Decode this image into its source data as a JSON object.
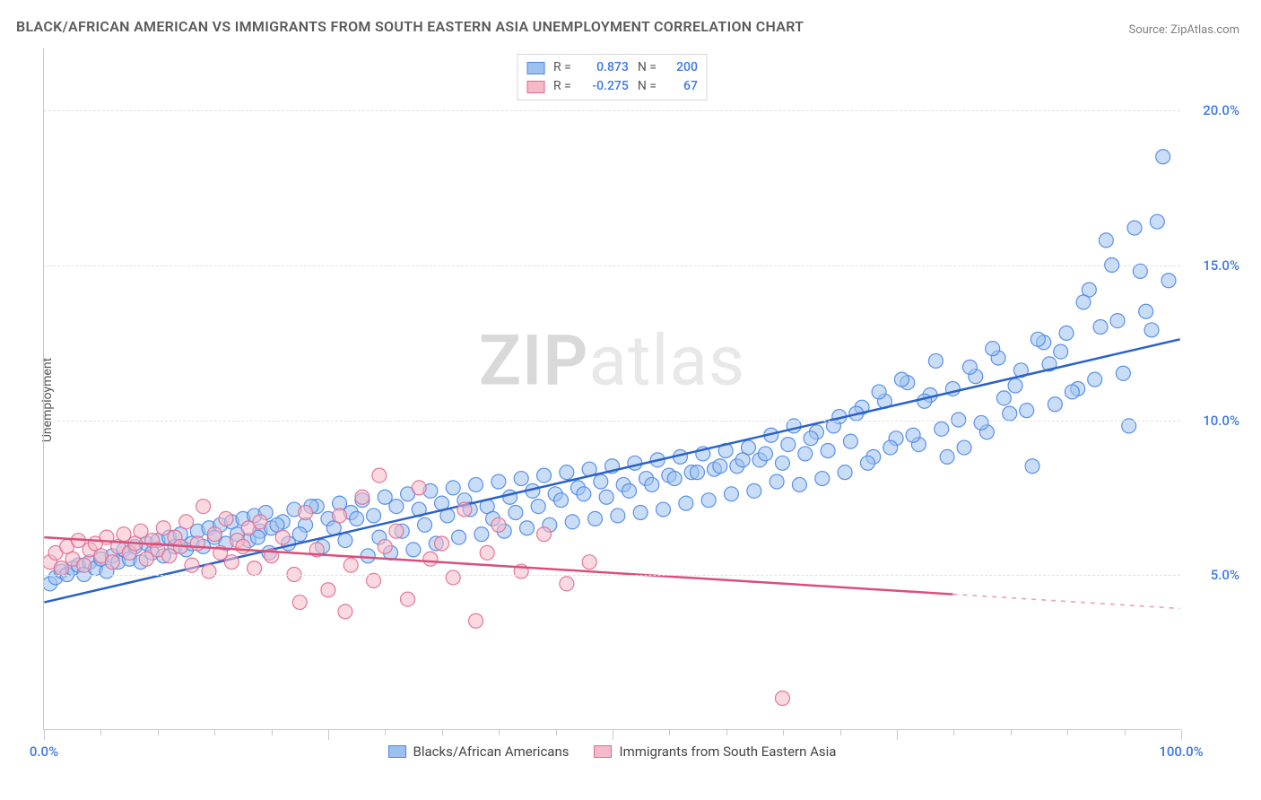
{
  "title": "BLACK/AFRICAN AMERICAN VS IMMIGRANTS FROM SOUTH EASTERN ASIA UNEMPLOYMENT CORRELATION CHART",
  "source": "Source: ZipAtlas.com",
  "ylabel": "Unemployment",
  "watermark": {
    "brand": "ZIP",
    "suffix": "atlas"
  },
  "chart": {
    "type": "scatter",
    "background_color": "#ffffff",
    "grid_color": "#e0e0e0",
    "axis_color": "#c9c9c9",
    "xlim": [
      0,
      100
    ],
    "ylim": [
      0,
      22
    ],
    "x_ticks_major": [
      0,
      25,
      50,
      75,
      100
    ],
    "x_ticks_minor_step": 5,
    "x_tick_labels": [
      {
        "value": 0,
        "label": "0.0%",
        "color": "#3b78e7"
      },
      {
        "value": 100,
        "label": "100.0%",
        "color": "#3b78e7"
      }
    ],
    "y_gridlines": [
      5,
      10,
      15,
      20
    ],
    "y_tick_labels": [
      {
        "value": 5,
        "label": "5.0%",
        "color": "#3b78e7"
      },
      {
        "value": 10,
        "label": "10.0%",
        "color": "#3b78e7"
      },
      {
        "value": 15,
        "label": "15.0%",
        "color": "#3b78e7"
      },
      {
        "value": 20,
        "label": "20.0%",
        "color": "#3b78e7"
      }
    ],
    "marker_radius": 8,
    "marker_opacity": 0.55,
    "marker_stroke_opacity": 0.9,
    "line_width": 2.5,
    "legend_top": {
      "border_color": "#d6d6d6",
      "rows": [
        {
          "swatch_fill": "#9cc1f0",
          "swatch_stroke": "#4a86e8",
          "r_label": "R =",
          "r_value": "0.873",
          "n_label": "N =",
          "n_value": "200"
        },
        {
          "swatch_fill": "#f6b9c8",
          "swatch_stroke": "#e06c8f",
          "r_label": "R =",
          "r_value": "-0.275",
          "n_label": "N =",
          "n_value": "67"
        }
      ]
    },
    "legend_bottom": [
      {
        "swatch_fill": "#9cc1f0",
        "swatch_stroke": "#4a86e8",
        "label": "Blacks/African Americans"
      },
      {
        "swatch_fill": "#f6b9c8",
        "swatch_stroke": "#e06c8f",
        "label": "Immigrants from South Eastern Asia"
      }
    ],
    "series": [
      {
        "key": "blue",
        "fill": "#9cc1f0",
        "stroke": "#4a86e8",
        "trend": {
          "x1": 0,
          "y1": 4.1,
          "x2": 100,
          "y2": 12.6,
          "color": "#2a62c9",
          "dash_from_x": null
        },
        "points": [
          [
            0.5,
            4.7
          ],
          [
            1,
            4.9
          ],
          [
            1.5,
            5.1
          ],
          [
            2,
            5.0
          ],
          [
            2.5,
            5.2
          ],
          [
            3,
            5.3
          ],
          [
            3.5,
            5.0
          ],
          [
            4,
            5.4
          ],
          [
            4.5,
            5.2
          ],
          [
            5,
            5.5
          ],
          [
            5.5,
            5.1
          ],
          [
            6,
            5.6
          ],
          [
            6.5,
            5.4
          ],
          [
            7,
            5.8
          ],
          [
            7.5,
            5.5
          ],
          [
            8,
            5.9
          ],
          [
            8.5,
            5.4
          ],
          [
            9,
            6.0
          ],
          [
            9.5,
            5.7
          ],
          [
            10,
            6.1
          ],
          [
            10.5,
            5.6
          ],
          [
            11,
            6.2
          ],
          [
            11.5,
            5.9
          ],
          [
            12,
            6.3
          ],
          [
            12.5,
            5.8
          ],
          [
            13,
            6.0
          ],
          [
            13.5,
            6.4
          ],
          [
            14,
            5.9
          ],
          [
            14.5,
            6.5
          ],
          [
            15,
            6.2
          ],
          [
            15.5,
            6.6
          ],
          [
            16,
            6.0
          ],
          [
            16.5,
            6.7
          ],
          [
            17,
            6.3
          ],
          [
            17.5,
            6.8
          ],
          [
            18,
            6.1
          ],
          [
            18.5,
            6.9
          ],
          [
            19,
            6.4
          ],
          [
            19.5,
            7.0
          ],
          [
            20,
            6.5
          ],
          [
            21,
            6.7
          ],
          [
            22,
            7.1
          ],
          [
            23,
            6.6
          ],
          [
            24,
            7.2
          ],
          [
            25,
            6.8
          ],
          [
            26,
            7.3
          ],
          [
            27,
            7.0
          ],
          [
            28,
            7.4
          ],
          [
            29,
            6.9
          ],
          [
            30,
            7.5
          ],
          [
            31,
            7.2
          ],
          [
            32,
            7.6
          ],
          [
            33,
            7.1
          ],
          [
            34,
            7.7
          ],
          [
            35,
            7.3
          ],
          [
            36,
            7.8
          ],
          [
            37,
            7.4
          ],
          [
            38,
            7.9
          ],
          [
            39,
            7.2
          ],
          [
            40,
            8.0
          ],
          [
            41,
            7.5
          ],
          [
            42,
            8.1
          ],
          [
            43,
            7.7
          ],
          [
            44,
            8.2
          ],
          [
            45,
            7.6
          ],
          [
            46,
            8.3
          ],
          [
            47,
            7.8
          ],
          [
            48,
            8.4
          ],
          [
            49,
            8.0
          ],
          [
            50,
            8.5
          ],
          [
            51,
            7.9
          ],
          [
            52,
            8.6
          ],
          [
            53,
            8.1
          ],
          [
            54,
            8.7
          ],
          [
            55,
            8.2
          ],
          [
            56,
            8.8
          ],
          [
            57,
            8.3
          ],
          [
            58,
            8.9
          ],
          [
            59,
            8.4
          ],
          [
            60,
            9.0
          ],
          [
            61,
            8.5
          ],
          [
            62,
            9.1
          ],
          [
            63,
            8.7
          ],
          [
            64,
            9.5
          ],
          [
            65,
            8.6
          ],
          [
            66,
            9.8
          ],
          [
            67,
            8.9
          ],
          [
            68,
            9.6
          ],
          [
            69,
            9.0
          ],
          [
            70,
            10.1
          ],
          [
            71,
            9.3
          ],
          [
            72,
            10.4
          ],
          [
            73,
            8.8
          ],
          [
            74,
            10.6
          ],
          [
            75,
            9.4
          ],
          [
            76,
            11.2
          ],
          [
            77,
            9.2
          ],
          [
            78,
            10.8
          ],
          [
            79,
            9.7
          ],
          [
            80,
            11.0
          ],
          [
            81,
            9.1
          ],
          [
            82,
            11.4
          ],
          [
            83,
            9.6
          ],
          [
            84,
            12.0
          ],
          [
            85,
            10.2
          ],
          [
            86,
            11.6
          ],
          [
            87,
            8.5
          ],
          [
            88,
            12.5
          ],
          [
            89,
            10.5
          ],
          [
            90,
            12.8
          ],
          [
            91,
            11.0
          ],
          [
            92,
            14.2
          ],
          [
            93,
            13.0
          ],
          [
            94,
            15.0
          ],
          [
            95,
            11.5
          ],
          [
            96,
            16.2
          ],
          [
            97,
            13.5
          ],
          [
            98,
            16.4
          ],
          [
            98.5,
            18.5
          ],
          [
            99,
            14.5
          ],
          [
            97.5,
            12.9
          ],
          [
            96.5,
            14.8
          ],
          [
            95.5,
            9.8
          ],
          [
            94.5,
            13.2
          ],
          [
            93.5,
            15.8
          ],
          [
            92.5,
            11.3
          ],
          [
            91.5,
            13.8
          ],
          [
            90.5,
            10.9
          ],
          [
            89.5,
            12.2
          ],
          [
            88.5,
            11.8
          ],
          [
            87.5,
            12.6
          ],
          [
            86.5,
            10.3
          ],
          [
            85.5,
            11.1
          ],
          [
            84.5,
            10.7
          ],
          [
            83.5,
            12.3
          ],
          [
            82.5,
            9.9
          ],
          [
            81.5,
            11.7
          ],
          [
            80.5,
            10.0
          ],
          [
            79.5,
            8.8
          ],
          [
            78.5,
            11.9
          ],
          [
            77.5,
            10.6
          ],
          [
            76.5,
            9.5
          ],
          [
            75.5,
            11.3
          ],
          [
            74.5,
            9.1
          ],
          [
            73.5,
            10.9
          ],
          [
            72.5,
            8.6
          ],
          [
            71.5,
            10.2
          ],
          [
            70.5,
            8.3
          ],
          [
            69.5,
            9.8
          ],
          [
            68.5,
            8.1
          ],
          [
            67.5,
            9.4
          ],
          [
            66.5,
            7.9
          ],
          [
            65.5,
            9.2
          ],
          [
            64.5,
            8.0
          ],
          [
            63.5,
            8.9
          ],
          [
            62.5,
            7.7
          ],
          [
            61.5,
            8.7
          ],
          [
            60.5,
            7.6
          ],
          [
            59.5,
            8.5
          ],
          [
            58.5,
            7.4
          ],
          [
            57.5,
            8.3
          ],
          [
            56.5,
            7.3
          ],
          [
            55.5,
            8.1
          ],
          [
            54.5,
            7.1
          ],
          [
            53.5,
            7.9
          ],
          [
            52.5,
            7.0
          ],
          [
            51.5,
            7.7
          ],
          [
            50.5,
            6.9
          ],
          [
            49.5,
            7.5
          ],
          [
            48.5,
            6.8
          ],
          [
            47.5,
            7.6
          ],
          [
            46.5,
            6.7
          ],
          [
            45.5,
            7.4
          ],
          [
            44.5,
            6.6
          ],
          [
            43.5,
            7.2
          ],
          [
            42.5,
            6.5
          ],
          [
            41.5,
            7.0
          ],
          [
            40.5,
            6.4
          ],
          [
            39.5,
            6.8
          ],
          [
            38.5,
            6.3
          ],
          [
            37.5,
            7.1
          ],
          [
            36.5,
            6.2
          ],
          [
            35.5,
            6.9
          ],
          [
            34.5,
            6.0
          ],
          [
            33.5,
            6.6
          ],
          [
            32.5,
            5.8
          ],
          [
            31.5,
            6.4
          ],
          [
            30.5,
            5.7
          ],
          [
            29.5,
            6.2
          ],
          [
            28.5,
            5.6
          ],
          [
            27.5,
            6.8
          ],
          [
            26.5,
            6.1
          ],
          [
            25.5,
            6.5
          ],
          [
            24.5,
            5.9
          ],
          [
            23.5,
            7.2
          ],
          [
            22.5,
            6.3
          ],
          [
            21.5,
            6.0
          ],
          [
            20.5,
            6.6
          ],
          [
            19.8,
            5.7
          ],
          [
            18.8,
            6.2
          ]
        ]
      },
      {
        "key": "pink",
        "fill": "#f6b9c8",
        "stroke": "#e06c8f",
        "trend": {
          "x1": 0,
          "y1": 6.2,
          "x2": 100,
          "y2": 3.9,
          "color": "#d94f7a",
          "dash_from_x": 80
        },
        "points": [
          [
            0.5,
            5.4
          ],
          [
            1,
            5.7
          ],
          [
            1.5,
            5.2
          ],
          [
            2,
            5.9
          ],
          [
            2.5,
            5.5
          ],
          [
            3,
            6.1
          ],
          [
            3.5,
            5.3
          ],
          [
            4,
            5.8
          ],
          [
            4.5,
            6.0
          ],
          [
            5,
            5.6
          ],
          [
            5.5,
            6.2
          ],
          [
            6,
            5.4
          ],
          [
            6.5,
            5.9
          ],
          [
            7,
            6.3
          ],
          [
            7.5,
            5.7
          ],
          [
            8,
            6.0
          ],
          [
            8.5,
            6.4
          ],
          [
            9,
            5.5
          ],
          [
            9.5,
            6.1
          ],
          [
            10,
            5.8
          ],
          [
            10.5,
            6.5
          ],
          [
            11,
            5.6
          ],
          [
            11.5,
            6.2
          ],
          [
            12,
            5.9
          ],
          [
            12.5,
            6.7
          ],
          [
            13,
            5.3
          ],
          [
            13.5,
            6.0
          ],
          [
            14,
            7.2
          ],
          [
            14.5,
            5.1
          ],
          [
            15,
            6.3
          ],
          [
            15.5,
            5.7
          ],
          [
            16,
            6.8
          ],
          [
            16.5,
            5.4
          ],
          [
            17,
            6.1
          ],
          [
            17.5,
            5.9
          ],
          [
            18,
            6.5
          ],
          [
            18.5,
            5.2
          ],
          [
            19,
            6.7
          ],
          [
            20,
            5.6
          ],
          [
            21,
            6.2
          ],
          [
            22,
            5.0
          ],
          [
            22.5,
            4.1
          ],
          [
            23,
            7.0
          ],
          [
            24,
            5.8
          ],
          [
            25,
            4.5
          ],
          [
            26,
            6.9
          ],
          [
            26.5,
            3.8
          ],
          [
            27,
            5.3
          ],
          [
            28,
            7.5
          ],
          [
            29,
            4.8
          ],
          [
            29.5,
            8.2
          ],
          [
            30,
            5.9
          ],
          [
            31,
            6.4
          ],
          [
            32,
            4.2
          ],
          [
            33,
            7.8
          ],
          [
            34,
            5.5
          ],
          [
            35,
            6.0
          ],
          [
            36,
            4.9
          ],
          [
            37,
            7.1
          ],
          [
            38,
            3.5
          ],
          [
            39,
            5.7
          ],
          [
            40,
            6.6
          ],
          [
            42,
            5.1
          ],
          [
            44,
            6.3
          ],
          [
            46,
            4.7
          ],
          [
            48,
            5.4
          ],
          [
            65,
            1.0
          ]
        ]
      }
    ]
  }
}
